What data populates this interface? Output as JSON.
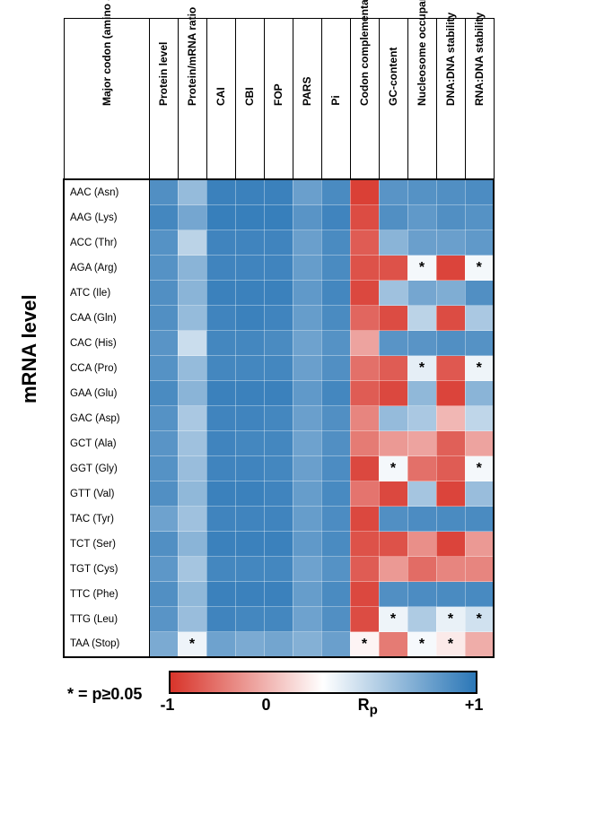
{
  "title": "mRNA level",
  "row_label_header": "Major codon\n(amino acid)",
  "columns": [
    "Protein level",
    "Protein/mRNA ratio",
    "CAI",
    "CBI",
    "FOP",
    "PARS",
    "Pi",
    "Codon complementarity",
    "GC-content",
    "Nucleosome occupancy",
    "DNA:DNA stability",
    "RNA:DNA stability"
  ],
  "rows": [
    "AAC (Asn)",
    "AAG (Lys)",
    "ACC (Thr)",
    "AGA (Arg)",
    "ATC (Ile)",
    "CAA (Gln)",
    "CAC (His)",
    "CCA (Pro)",
    "GAA (Glu)",
    "GAC (Asp)",
    "GCT (Ala)",
    "GGT (Gly)",
    "GTT (Val)",
    "TAC (Tyr)",
    "TCT (Ser)",
    "TGT (Cys)",
    "TTC (Phe)",
    "TTG (Leu)",
    "TAA (Stop)"
  ],
  "values": [
    [
      0.82,
      0.5,
      0.92,
      0.92,
      0.92,
      0.7,
      0.85,
      -0.94,
      0.78,
      0.8,
      0.82,
      0.84
    ],
    [
      0.88,
      0.65,
      0.94,
      0.94,
      0.94,
      0.78,
      0.9,
      -0.88,
      0.82,
      0.75,
      0.82,
      0.8
    ],
    [
      0.8,
      0.32,
      0.9,
      0.9,
      0.9,
      0.7,
      0.85,
      -0.8,
      0.55,
      0.7,
      0.7,
      0.75
    ],
    [
      0.8,
      0.55,
      0.9,
      0.9,
      0.9,
      0.72,
      0.85,
      -0.85,
      -0.85,
      0.05,
      -0.92,
      0.05
    ],
    [
      0.82,
      0.55,
      0.92,
      0.92,
      0.92,
      0.75,
      0.88,
      -0.9,
      0.45,
      0.65,
      0.6,
      0.82
    ],
    [
      0.82,
      0.5,
      0.9,
      0.92,
      0.9,
      0.72,
      0.85,
      -0.75,
      -0.88,
      0.32,
      -0.88,
      0.4
    ],
    [
      0.78,
      0.25,
      0.88,
      0.88,
      0.85,
      0.68,
      0.8,
      -0.45,
      0.78,
      0.78,
      0.82,
      0.8
    ],
    [
      0.8,
      0.5,
      0.88,
      0.88,
      0.88,
      0.7,
      0.82,
      -0.7,
      -0.8,
      0.12,
      -0.82,
      0.08
    ],
    [
      0.85,
      0.55,
      0.92,
      0.92,
      0.92,
      0.75,
      0.88,
      -0.8,
      -0.9,
      0.52,
      -0.92,
      0.55
    ],
    [
      0.8,
      0.4,
      0.9,
      0.9,
      0.88,
      0.7,
      0.82,
      -0.6,
      0.5,
      0.4,
      -0.35,
      0.3
    ],
    [
      0.78,
      0.45,
      0.9,
      0.88,
      0.88,
      0.68,
      0.82,
      -0.65,
      -0.5,
      -0.45,
      -0.78,
      -0.45
    ],
    [
      0.8,
      0.48,
      0.9,
      0.9,
      0.88,
      0.7,
      0.84,
      -0.9,
      0.05,
      -0.7,
      -0.8,
      0.05
    ],
    [
      0.82,
      0.52,
      0.92,
      0.92,
      0.9,
      0.72,
      0.86,
      -0.68,
      -0.9,
      0.42,
      -0.92,
      0.48
    ],
    [
      0.68,
      0.45,
      0.9,
      0.9,
      0.9,
      0.72,
      0.84,
      -0.9,
      0.82,
      0.84,
      0.85,
      0.85
    ],
    [
      0.82,
      0.55,
      0.92,
      0.92,
      0.92,
      0.75,
      0.85,
      -0.85,
      -0.85,
      -0.55,
      -0.92,
      -0.5
    ],
    [
      0.76,
      0.42,
      0.88,
      0.88,
      0.88,
      0.68,
      0.8,
      -0.8,
      -0.5,
      -0.72,
      -0.6,
      -0.6
    ],
    [
      0.82,
      0.52,
      0.92,
      0.92,
      0.92,
      0.72,
      0.85,
      -0.9,
      0.82,
      0.84,
      0.85,
      0.86
    ],
    [
      0.78,
      0.48,
      0.9,
      0.88,
      0.88,
      0.68,
      0.82,
      -0.88,
      0.08,
      0.38,
      0.1,
      0.22
    ],
    [
      0.62,
      0.08,
      0.68,
      0.62,
      0.66,
      0.58,
      0.7,
      -0.05,
      -0.65,
      0.04,
      -0.1,
      -0.4
    ]
  ],
  "stars": [
    [],
    [],
    [],
    [
      9,
      11
    ],
    [],
    [],
    [],
    [
      9,
      11
    ],
    [],
    [],
    [],
    [
      8,
      11
    ],
    [],
    [],
    [],
    [],
    [],
    [
      8,
      10,
      11
    ],
    [
      1,
      7,
      9,
      10
    ]
  ],
  "legend_note": "* = p≥0.05",
  "colorbar": {
    "min_label": "-1",
    "mid_label": "0",
    "var_label": "R",
    "var_sub": "p",
    "max_label": "+1",
    "neg_color": "#d8342a",
    "mid_color": "#ffffff",
    "pos_color": "#2b77b7"
  },
  "style": {
    "cell_size": 27,
    "font_row": 11.5,
    "font_col": 12,
    "font_ylabel": 22
  }
}
